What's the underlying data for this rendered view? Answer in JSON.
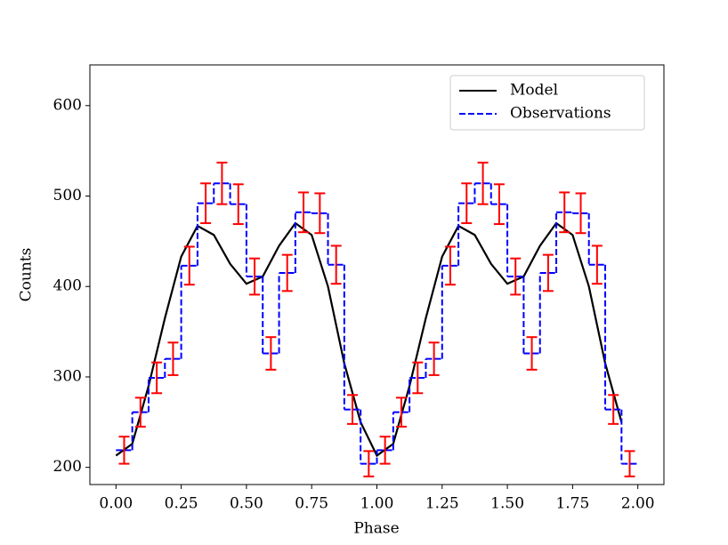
{
  "chart_data": {
    "type": "line",
    "xlabel": "Phase",
    "ylabel": "Counts",
    "xlim": [
      -0.1,
      2.1
    ],
    "ylim": [
      181,
      645
    ],
    "xticks": [
      {
        "value": 0,
        "label": "0.00"
      },
      {
        "value": 0.25,
        "label": "0.25"
      },
      {
        "value": 0.5,
        "label": "0.50"
      },
      {
        "value": 0.75,
        "label": "0.75"
      },
      {
        "value": 1,
        "label": "1.00"
      },
      {
        "value": 1.25,
        "label": "1.25"
      },
      {
        "value": 1.5,
        "label": "1.50"
      },
      {
        "value": 1.75,
        "label": "1.75"
      },
      {
        "value": 2,
        "label": "2.00"
      }
    ],
    "yticks": [
      200,
      300,
      400,
      500,
      600
    ],
    "legend": "upper right",
    "series": [
      {
        "name": "Model",
        "color": "#000000",
        "x": [
          0,
          0.0625,
          0.125,
          0.1875,
          0.25,
          0.3125,
          0.375,
          0.4375,
          0.5,
          0.5625,
          0.625,
          0.6875,
          0.75,
          0.8125,
          0.875,
          0.9375,
          1,
          1.0625,
          1.125,
          1.1875,
          1.25,
          1.3125,
          1.375,
          1.4375,
          1.5,
          1.5625,
          1.625,
          1.6875,
          1.75,
          1.8125,
          1.875,
          1.9375
        ],
        "values": [
          213,
          226,
          290,
          365,
          433,
          467,
          457,
          425,
          403,
          411,
          445,
          470,
          457,
          400,
          315,
          250,
          213,
          226,
          290,
          365,
          433,
          467,
          457,
          425,
          403,
          411,
          445,
          470,
          457,
          400,
          315,
          250
        ]
      },
      {
        "name": "Observations",
        "color": "#0000ff",
        "error_color": "#ff0000",
        "bins": [
          0,
          0.0625,
          0.125,
          0.1875,
          0.25,
          0.3125,
          0.375,
          0.4375,
          0.5,
          0.5625,
          0.625,
          0.6875,
          0.75,
          0.8125,
          0.875,
          0.9375,
          1,
          1.0625,
          1.125,
          1.1875,
          1.25,
          1.3125,
          1.375,
          1.4375,
          1.5,
          1.5625,
          1.625,
          1.6875,
          1.75,
          1.8125,
          1.875,
          1.9375,
          2
        ],
        "values": [
          219,
          261,
          299,
          320,
          423,
          492,
          514,
          491,
          411,
          326,
          415,
          482,
          481,
          424,
          264,
          204,
          219,
          261,
          299,
          320,
          423,
          492,
          514,
          491,
          411,
          326,
          415,
          482,
          481,
          424,
          264,
          204
        ],
        "errors": [
          15,
          16,
          17,
          18,
          21,
          22,
          23,
          22,
          20,
          18,
          20,
          22,
          22,
          21,
          16,
          14,
          15,
          16,
          17,
          18,
          21,
          22,
          23,
          22,
          20,
          18,
          20,
          22,
          22,
          21,
          16,
          14
        ]
      }
    ]
  }
}
